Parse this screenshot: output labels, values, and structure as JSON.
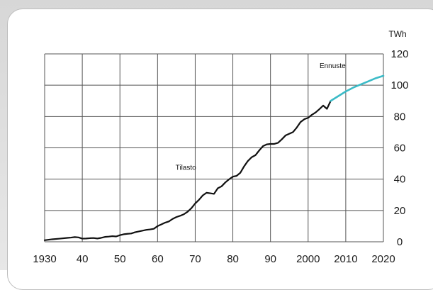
{
  "chart_data": {
    "type": "line",
    "title": "",
    "xlabel": "",
    "ylabel": "TWh",
    "xlim": [
      1930,
      2020
    ],
    "ylim": [
      0,
      120
    ],
    "grid": true,
    "x_ticks": [
      "1930",
      "40",
      "50",
      "60",
      "70",
      "80",
      "90",
      "2000",
      "2010",
      "2020"
    ],
    "y_ticks": [
      "0",
      "20",
      "40",
      "60",
      "80",
      "100",
      "120"
    ],
    "annotations": [
      {
        "text": "Tilasto",
        "series": 0
      },
      {
        "text": "Ennuste",
        "series": 1
      }
    ],
    "series": [
      {
        "name": "Tilasto",
        "color": "#111111",
        "x": [
          1930,
          1932,
          1934,
          1936,
          1937,
          1938,
          1939,
          1940,
          1941,
          1942,
          1943,
          1944,
          1945,
          1946,
          1947,
          1948,
          1949,
          1950,
          1951,
          1952,
          1953,
          1954,
          1955,
          1956,
          1957,
          1958,
          1959,
          1960,
          1961,
          1962,
          1963,
          1964,
          1965,
          1966,
          1967,
          1968,
          1969,
          1970,
          1971,
          1972,
          1973,
          1974,
          1975,
          1976,
          1977,
          1978,
          1979,
          1980,
          1981,
          1982,
          1983,
          1984,
          1985,
          1986,
          1987,
          1988,
          1989,
          1990,
          1991,
          1992,
          1993,
          1994,
          1995,
          1996,
          1997,
          1998,
          1999,
          2000,
          2001,
          2002,
          2003,
          2004,
          2005,
          2006
        ],
        "y": [
          1.0,
          1.6,
          2.0,
          2.5,
          2.7,
          3.0,
          2.8,
          2.0,
          2.1,
          2.3,
          2.4,
          2.1,
          2.5,
          3.1,
          3.3,
          3.6,
          3.4,
          4.2,
          4.8,
          5.1,
          5.3,
          6.1,
          6.6,
          7.1,
          7.6,
          7.9,
          8.3,
          10.0,
          11.1,
          12.2,
          13.0,
          14.6,
          15.8,
          16.6,
          17.6,
          19.2,
          21.5,
          24.5,
          26.8,
          29.6,
          31.3,
          31.0,
          30.6,
          34.2,
          35.4,
          37.9,
          39.9,
          41.6,
          42.1,
          44.1,
          48.2,
          51.6,
          54.0,
          55.3,
          58.3,
          61.1,
          62.2,
          62.5,
          62.5,
          63.2,
          65.4,
          67.9,
          69.0,
          70.1,
          73.0,
          76.5,
          78.3,
          79.2,
          81.1,
          82.6,
          84.7,
          87.0,
          84.9,
          90.0
        ]
      },
      {
        "name": "Ennuste",
        "color": "#3bbbc7",
        "x": [
          2006,
          2008,
          2010,
          2012,
          2014,
          2016,
          2018,
          2020
        ],
        "y": [
          90.0,
          93.0,
          96.0,
          98.5,
          100.5,
          102.5,
          104.5,
          106.0
        ]
      }
    ]
  },
  "frame": {
    "background": "#e2e2e2",
    "card_border": "#bdbdbd",
    "grid_color": "#555555"
  }
}
